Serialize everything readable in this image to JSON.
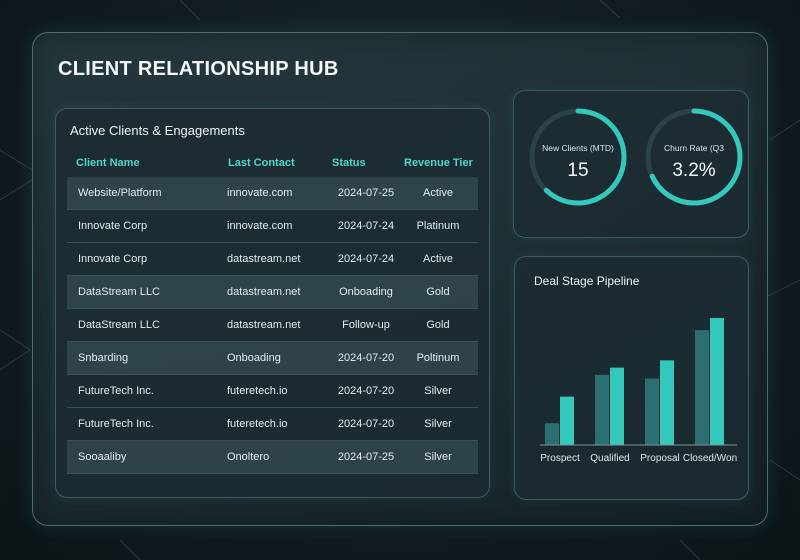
{
  "hub_title": "CLIENT RELATIONSHIP HUB",
  "clients": {
    "title": "Active Clients & Engagements",
    "columns": [
      "Client Name",
      "Last Contact",
      "Status",
      "Revenue Tier"
    ],
    "rows": [
      [
        "Website/Platform",
        "innovate.com",
        "2024-07-25",
        "Active"
      ],
      [
        "Innovate Corp",
        "innovate.com",
        "2024-07-24",
        "Platinum"
      ],
      [
        "Innovate Corp",
        "datastream.net",
        "2024-07-24",
        "Active"
      ],
      [
        "DataStream LLC",
        "datastream.net",
        "Onboading",
        "Gold"
      ],
      [
        "DataStream LLC",
        "datastream.net",
        "Follow-up",
        "Gold"
      ],
      [
        "Snbarding",
        "Onboading",
        "2024-07-20",
        "Poltinum"
      ],
      [
        "FutureTech Inc.",
        "futeretech.io",
        "2024-07-20",
        "Silver"
      ],
      [
        "FutureTech Inc.",
        "futeretech.io",
        "2024-07-20",
        "Silver"
      ],
      [
        "Sooaaliby",
        "Onoltero",
        "2024-07-25",
        "Silver"
      ]
    ]
  },
  "kpis": [
    {
      "label": "New Clients (MTD)",
      "value": "15",
      "fill": 0.62
    },
    {
      "label": "Churn Rate (Q3",
      "value": "3.2%",
      "fill": 0.68
    }
  ],
  "colors": {
    "accent": "#35c9bd",
    "accent_dark": "#2b6f72",
    "header_text": "#4fd6c9"
  },
  "pipeline": {
    "title": "Deal Stage Pipeline",
    "chart_data": {
      "type": "bar",
      "title": "Deal Stage Pipeline",
      "categories": [
        "Prospect",
        "Qualified",
        "Proposal",
        "Closed/Won"
      ],
      "series": [
        {
          "values": [
            18,
            58,
            55,
            95
          ]
        },
        {
          "values": [
            40,
            64,
            70,
            105
          ]
        }
      ],
      "ylim": [
        0,
        110
      ],
      "grid": false,
      "legend": "none"
    }
  }
}
